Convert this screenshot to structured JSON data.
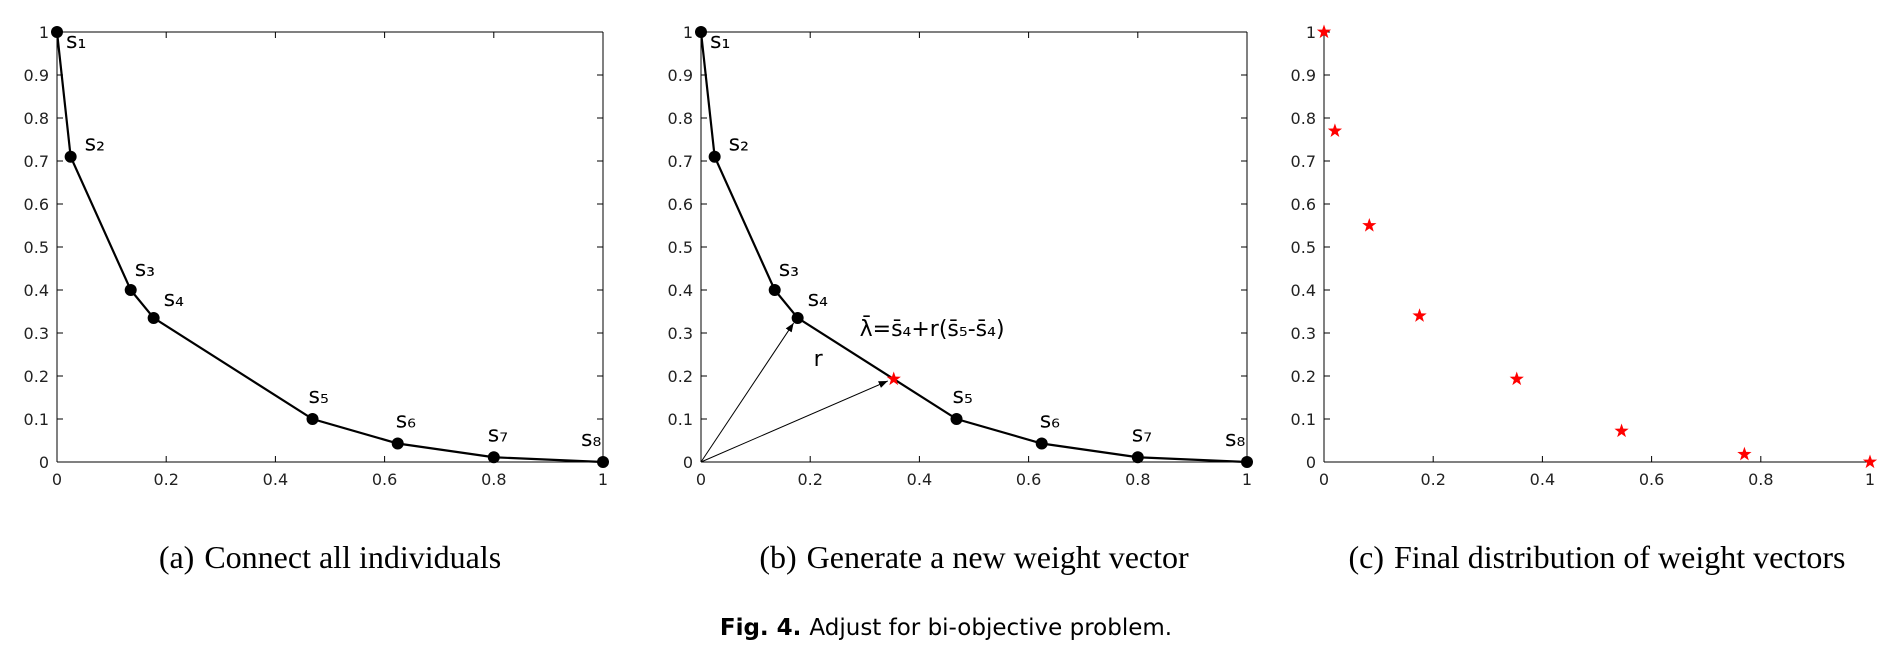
{
  "chart_data": [
    {
      "type": "line",
      "caption_label": "(a)",
      "caption": "Connect all individuals",
      "box": true,
      "xlim": [
        0,
        1
      ],
      "xticks": [
        0,
        0.2,
        0.4,
        0.6,
        0.8,
        1
      ],
      "ylim": [
        0,
        1
      ],
      "yticks": [
        0,
        0.1,
        0.2,
        0.3,
        0.4,
        0.5,
        0.6,
        0.7,
        0.8,
        0.9,
        1
      ],
      "point_labels": [
        "s₁",
        "s₂",
        "s₃",
        "s₄",
        "s₅",
        "s₆",
        "s₇",
        "s₈"
      ],
      "series": [
        {
          "color": "#000000",
          "x": [
            0,
            0.025,
            0.135,
            0.177,
            0.468,
            0.624,
            0.8,
            1
          ],
          "values": [
            1,
            0.71,
            0.4,
            0.335,
            0.1,
            0.043,
            0.011,
            0
          ]
        }
      ]
    },
    {
      "type": "line",
      "caption_label": "(b)",
      "caption": "Generate a new weight vector",
      "box": true,
      "xlim": [
        0,
        1
      ],
      "xticks": [
        0,
        0.2,
        0.4,
        0.6,
        0.8,
        1
      ],
      "ylim": [
        0,
        1
      ],
      "yticks": [
        0,
        0.1,
        0.2,
        0.3,
        0.4,
        0.5,
        0.6,
        0.7,
        0.8,
        0.9,
        1
      ],
      "point_labels": [
        "s₁",
        "s₂",
        "s₃",
        "s₄",
        "s₅",
        "s₆",
        "s₇",
        "s₈"
      ],
      "annotations": {
        "r": "r",
        "formula": "λ̄=s̄₄+r(s̄₅-s̄₄)"
      },
      "series": [
        {
          "color": "#000000",
          "x": [
            0,
            0.025,
            0.135,
            0.177,
            0.468,
            0.624,
            0.8,
            1
          ],
          "values": [
            1,
            0.71,
            0.4,
            0.335,
            0.1,
            0.043,
            0.011,
            0
          ]
        },
        {
          "marker": "star",
          "color": "#ff0000",
          "x": [
            0.353
          ],
          "values": [
            0.193
          ]
        }
      ]
    },
    {
      "type": "scatter",
      "caption_label": "(c)",
      "caption": "Final distribution of weight vectors",
      "box": false,
      "xlim": [
        0,
        1
      ],
      "xticks": [
        0,
        0.2,
        0.4,
        0.6,
        0.8,
        1
      ],
      "ylim": [
        0,
        1
      ],
      "yticks": [
        0,
        0.1,
        0.2,
        0.3,
        0.4,
        0.5,
        0.6,
        0.7,
        0.8,
        0.9,
        1
      ],
      "series": [
        {
          "marker": "star",
          "color": "#ff0000",
          "x": [
            0,
            0.02,
            0.083,
            0.175,
            0.353,
            0.545,
            0.77,
            1
          ],
          "values": [
            1,
            0.77,
            0.55,
            0.34,
            0.193,
            0.072,
            0.018,
            0
          ]
        }
      ]
    }
  ],
  "figure": {
    "label": "Fig. 4.",
    "caption": "Adjust for bi-objective problem."
  }
}
